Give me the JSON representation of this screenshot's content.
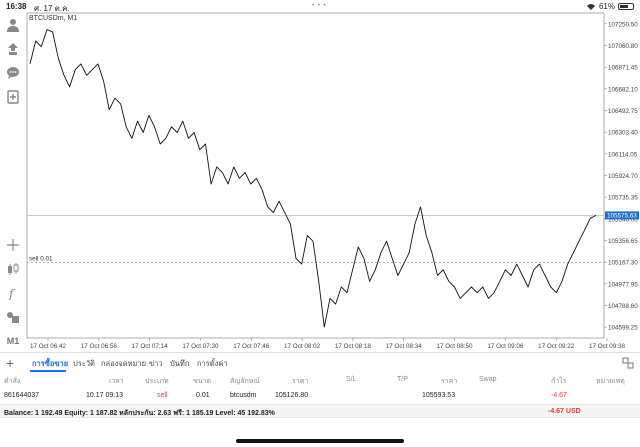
{
  "status_bar": {
    "time": "16:38",
    "date": "ศ. 17 ต.ค.",
    "battery": "61%"
  },
  "symbol_label": "BTCUSDm, M1",
  "chart_data": {
    "type": "line",
    "title": "BTCUSDm, M1",
    "xlabel": "",
    "ylabel": "",
    "ylim": [
      104504,
      107345
    ],
    "x_tick_labels": [
      "17 Oct 06:42",
      "17 Oct 06:58",
      "17 Oct 07:14",
      "17 Oct 07:30",
      "17 Oct 07:46",
      "17 Oct 08:02",
      "17 Oct 08:18",
      "17 Oct 08:34",
      "17 Oct 08:50",
      "17 Oct 09:06",
      "17 Oct 09:22",
      "17 Oct 09:38"
    ],
    "y_ticks": [
      107250.5,
      107060.8,
      106871.45,
      106682.1,
      106492.75,
      106303.4,
      106114.05,
      105924.7,
      105735.35,
      105546.0,
      105356.65,
      105167.3,
      104977.95,
      104788.6,
      104599.25
    ],
    "y_tick_labels": [
      "107250.50",
      "107060.80",
      "106871.45",
      "106682.10",
      "106492.75",
      "106303.40",
      "106114.05",
      "105924.70",
      "105735.35",
      "105546.00",
      "105356.65",
      "105167.30",
      "104977.95",
      "104788.60",
      "104599.25"
    ],
    "current_price": 105575.63,
    "current_price_label": "105575.63",
    "order_line": {
      "price": 105165.0,
      "label": "sell 0.01"
    },
    "series": [
      {
        "values": [
          106900,
          107100,
          107050,
          107200,
          107180,
          106950,
          106800,
          106700,
          106850,
          106900,
          106800,
          106850,
          106900,
          106750,
          106500,
          106600,
          106550,
          106350,
          106250,
          106400,
          106300,
          106450,
          106350,
          106200,
          106250,
          106350,
          106300,
          106400,
          106250,
          106300,
          106150,
          106200,
          105850,
          106000,
          105950,
          105850,
          106000,
          105900,
          105950,
          105850,
          105900,
          105800,
          105650,
          105600,
          105700,
          105600,
          105500,
          105200,
          105150,
          105400,
          105350,
          105000,
          104600,
          104850,
          104800,
          104950,
          104900,
          105100,
          105300,
          105200,
          105000,
          105100,
          105250,
          105350,
          105200,
          105050,
          105150,
          105250,
          105500,
          105650,
          105400,
          105250,
          105050,
          105100,
          105000,
          104950,
          104850,
          104900,
          104950,
          104900,
          104950,
          104850,
          104900,
          105000,
          105100,
          105050,
          105150,
          105050,
          104950,
          105100,
          105150,
          105050,
          104950,
          104900,
          105000,
          105150,
          105250,
          105350,
          105450,
          105550,
          105575.63
        ]
      }
    ]
  },
  "terminal": {
    "tabs": [
      "การซื้อขาย",
      "ประวัติ",
      "กล่องจดหมาย",
      "ข่าว",
      "บันทึก",
      "การตั้งค่า"
    ],
    "columns": [
      "คำสั่ง",
      "เวลา",
      "ประเภท",
      "ขนาด",
      "สัญลักษณ์",
      "ราคา",
      "S/L",
      "T/P",
      "ราคา",
      "Swap",
      "กำไร",
      "หมายเหตุ"
    ],
    "position": {
      "order": "861644037",
      "time": "10.17 09:13",
      "type": "sell",
      "volume": "0.01",
      "symbol": "btcusdm",
      "open_price": "105126.80",
      "current_price": "105593.53",
      "profit": "-4.67"
    },
    "balance_text": "Balance: 1 192.49 Equity: 1 187.82 หลักประกัน: 2.63 ฟรี: 1 185.19 Level: 45 192.83%",
    "total_profit": "-4.67  USD"
  },
  "toolbar_icons": [
    "user-icon",
    "buy-sell-icon",
    "chat-icon",
    "new-order-icon",
    "crosshair-icon",
    "candles-icon",
    "indicator-icon",
    "objects-icon",
    "timeframe-label"
  ],
  "timeframe": "M1",
  "colors": {
    "accent": "#1a73e8",
    "loss": "#e53935",
    "price_tag": "#1a6fd1"
  }
}
